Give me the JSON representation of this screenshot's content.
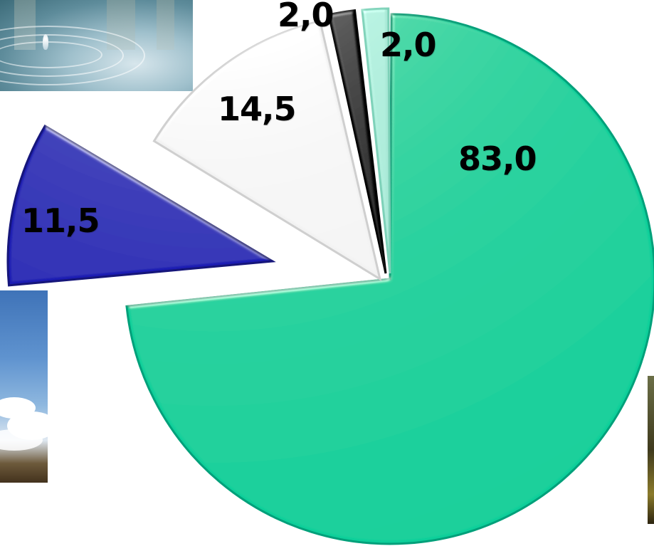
{
  "chart_data": {
    "type": "pie",
    "exploded": true,
    "style": "3d-bevel",
    "slices": [
      {
        "label": "83,0",
        "value": 83.0,
        "color": "#0ccf9a"
      },
      {
        "label": "11,5",
        "value": 11.5,
        "color": "#1d1fb3"
      },
      {
        "label": "14,5",
        "value": 14.5,
        "color": "#f2f2f2"
      },
      {
        "label": "2,0",
        "value": 2.0,
        "color": "#0a0a0a"
      },
      {
        "label": "2,0",
        "value": 2.0,
        "color": "#a8e8d6"
      }
    ]
  }
}
